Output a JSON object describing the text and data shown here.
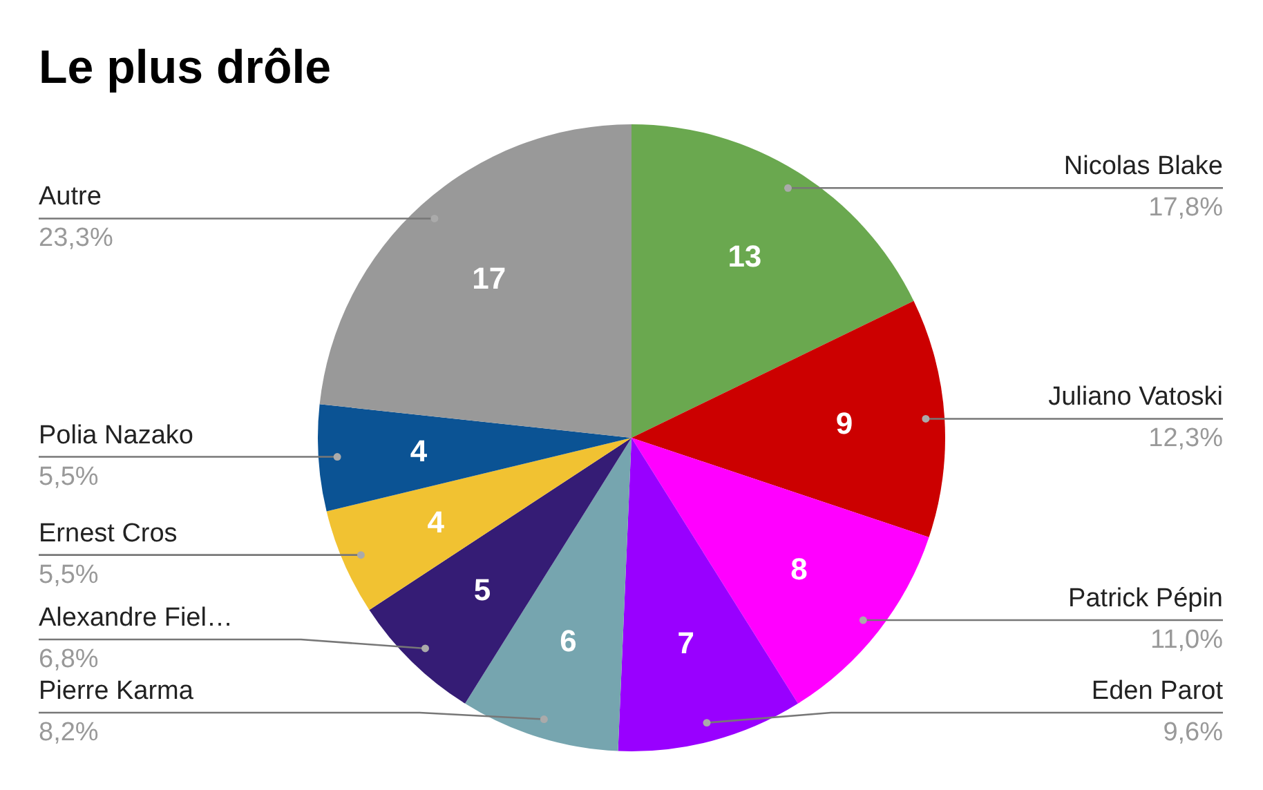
{
  "chart_data": {
    "type": "pie",
    "title": "Le plus drôle",
    "categories": [
      "Nicolas Blake",
      "Juliano Vatoski",
      "Patrick Pépin",
      "Eden Parot",
      "Pierre Karma",
      "Alexandre Fiel…",
      "Ernest Cros",
      "Polia Nazako",
      "Autre"
    ],
    "values": [
      13,
      9,
      8,
      7,
      6,
      5,
      4,
      4,
      17
    ],
    "colors": [
      "#6aa84f",
      "#cc0000",
      "#ff00ff",
      "#9900ff",
      "#76a5af",
      "#351c75",
      "#f1c232",
      "#0b5394",
      "#999999"
    ],
    "annotations": [
      "17,8%",
      "12,3%",
      "11,0%",
      "9,6%",
      "8,2%",
      "6,8%",
      "5,5%",
      "5,5%",
      "23,3%"
    ],
    "data_labels": true
  }
}
